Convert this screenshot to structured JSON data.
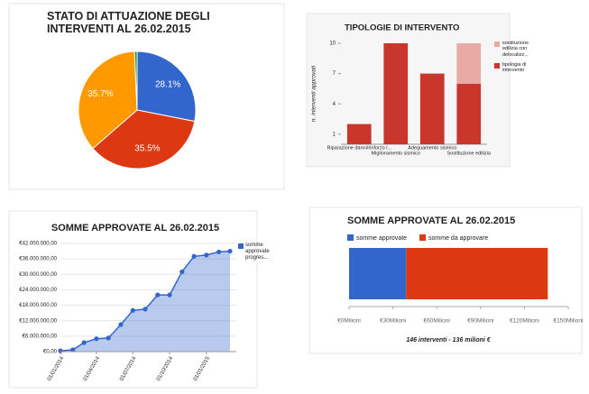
{
  "chart_data": [
    {
      "type": "pie",
      "title": "STATO DI ATTUAZIONE DEGLI INTERVENTI AL 26.02.2015",
      "values": [
        28.1,
        35.5,
        35.7,
        0.7
      ],
      "value_labels": [
        "28.1%",
        "35.5%",
        "35.7%",
        null
      ],
      "colors": [
        "#3366cc",
        "#dc3912",
        "#ff9900",
        "#109618"
      ]
    },
    {
      "type": "bar",
      "title": "TIPOLOGIE DI INTERVENTO",
      "ylabel": "n. interventi approvati",
      "stacked": true,
      "horizontal": false,
      "categories": [
        "Riparazione danni/rinforzo l...",
        "Miglioramento sismico",
        "Adeguamento sismico",
        "Sostituzione edilizia"
      ],
      "series": [
        {
          "name": "tipologia di intervento",
          "color": "#c9372c",
          "values": [
            2,
            10,
            7,
            6
          ]
        },
        {
          "name": "sostituzione edilizia con delocalizz...",
          "color": "#e8aaa5",
          "values": [
            0,
            0,
            0,
            4
          ]
        }
      ],
      "ylim": [
        0,
        10
      ],
      "yticks": [
        1,
        4,
        7,
        10
      ]
    },
    {
      "type": "area",
      "title": "SOMME APPROVATE AL 26.02.2015",
      "x": [
        "2014-01-01",
        "2014-02-01",
        "2014-03-01",
        "2014-04-01",
        "2014-05-01",
        "2014-06-01",
        "2014-07-01",
        "2014-08-01",
        "2014-09-01",
        "2014-10-01",
        "2014-11-01",
        "2014-12-01",
        "2015-01-01",
        "2015-02-01",
        "2015-03-01"
      ],
      "series": [
        {
          "name": "somme approvate progres...",
          "color": "#3366cc",
          "values": [
            300000,
            700000,
            3500000,
            5000000,
            5300000,
            10500000,
            16000000,
            16500000,
            22000000,
            22000000,
            31000000,
            37000000,
            37500000,
            38700000,
            39000000
          ]
        }
      ],
      "xlim": [
        "2014-01-01",
        "2015-03-01"
      ],
      "xticks": [
        {
          "value": "2014-01-01",
          "label": "01/01/2014"
        },
        {
          "value": "2014-04-01",
          "label": "01/04/2014"
        },
        {
          "value": "2014-07-01",
          "label": "01/07/2014"
        },
        {
          "value": "2014-10-01",
          "label": "01/10/2014"
        },
        {
          "value": "2015-01-01",
          "label": "01/01/2015"
        }
      ],
      "ylim": [
        0,
        42000000
      ],
      "yticks": [
        {
          "value": 0,
          "label": "€0,00"
        },
        {
          "value": 6000000,
          "label": "€6.000.000,00"
        },
        {
          "value": 12000000,
          "label": "€12.000.000,00"
        },
        {
          "value": 18000000,
          "label": "€18.000.000,00"
        },
        {
          "value": 24000000,
          "label": "€24.000.000,00"
        },
        {
          "value": 30000000,
          "label": "€30.000.000,00"
        },
        {
          "value": 36000000,
          "label": "€36.000.000,00"
        },
        {
          "value": 42000000,
          "label": "€42.000.000,00"
        }
      ],
      "grid": true
    },
    {
      "type": "bar",
      "title": "SOMME APPROVATE AL 26.02.2015",
      "xlabel": "146 interventi - 136 milioni €",
      "stacked": true,
      "horizontal": true,
      "series": [
        {
          "name": "somme approvate",
          "color": "#3366cc",
          "values": [
            39
          ]
        },
        {
          "name": "somme da approvare",
          "color": "#dc3912",
          "values": [
            97
          ]
        }
      ],
      "xlim": [
        0,
        150
      ],
      "xticks": [
        {
          "value": 0,
          "label": "€0Milioni"
        },
        {
          "value": 30,
          "label": "€30Milioni"
        },
        {
          "value": 60,
          "label": "€60Milioni"
        },
        {
          "value": 90,
          "label": "€90Milioni"
        },
        {
          "value": 120,
          "label": "€120Milioni"
        },
        {
          "value": 150,
          "label": "€150Milioni"
        }
      ]
    }
  ]
}
